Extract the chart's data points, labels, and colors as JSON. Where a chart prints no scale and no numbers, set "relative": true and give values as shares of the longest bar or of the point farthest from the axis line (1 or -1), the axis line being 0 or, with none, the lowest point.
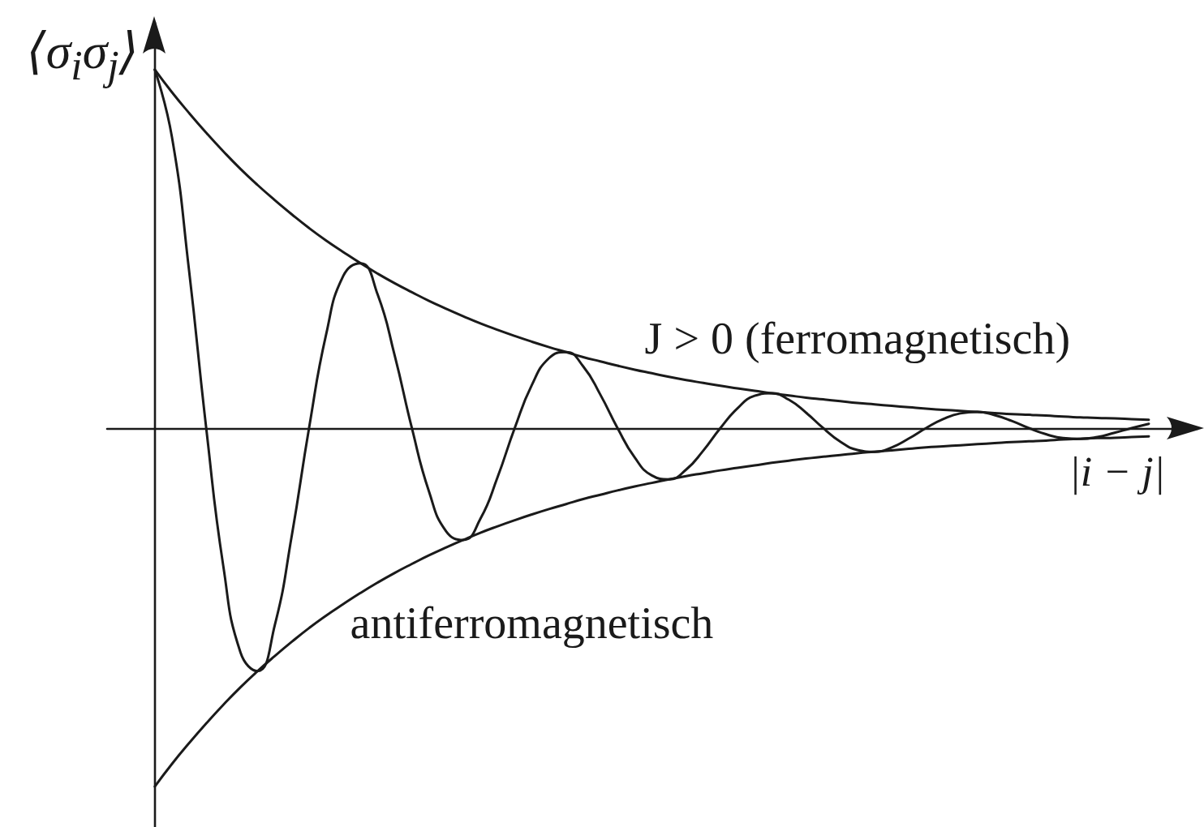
{
  "chart_data": {
    "type": "line",
    "relative": true,
    "tick_labels": false,
    "marker": "none",
    "line_style": "solid",
    "ylabel": "⟨σ$_{i}$σ$_{j}$⟩",
    "xlabel": "|i − j|",
    "categories": [
      null,
      null,
      null,
      null,
      null,
      null,
      null,
      null,
      null,
      null,
      null,
      null,
      null,
      null,
      null,
      null,
      null,
      null,
      null,
      null,
      null,
      null,
      null,
      null,
      null,
      null,
      null,
      null,
      null,
      null,
      null,
      null,
      null,
      null,
      null,
      null,
      null,
      null,
      null,
      null,
      null,
      null,
      null,
      null,
      null,
      null,
      null,
      null,
      null,
      null,
      null,
      null,
      null,
      null,
      null,
      null,
      null,
      null,
      null
    ],
    "series": [
      {
        "name": "J > 0 (ferromagnetisch)",
        "color": "#1a1a1a",
        "values": [
          1,
          0.937,
          0.879,
          0.824,
          0.772,
          0.723,
          0.678,
          0.636,
          0.596,
          0.558,
          0.523,
          0.491,
          0.46,
          0.431,
          0.404,
          0.379,
          0.355,
          0.333,
          0.312,
          0.292,
          0.274,
          0.257,
          0.241,
          0.226,
          0.212,
          0.198,
          0.186,
          0.174,
          0.163,
          0.153,
          0.143,
          0.134,
          0.126,
          0.118,
          0.111,
          0.104,
          0.097,
          0.091,
          0.085,
          0.08,
          0.075,
          0.07,
          0.066,
          0.062,
          0.058,
          0.054,
          0.051,
          0.048,
          0.045,
          0.042,
          0.039,
          0.037,
          0.035,
          0.032,
          0.03,
          0.028,
          0.027,
          0.025,
          0.023
        ]
      },
      {
        "name": "antiferromagnetisch",
        "color": "#1a1a1a",
        "values": [
          1,
          0.812,
          0.439,
          0,
          -0.386,
          -0.626,
          -0.678,
          -0.55,
          -0.298,
          0,
          0.262,
          0.425,
          0.46,
          0.373,
          0.202,
          0,
          -0.177,
          -0.288,
          -0.312,
          -0.253,
          -0.137,
          0,
          0.12,
          0.195,
          0.212,
          0.172,
          0.093,
          0,
          -0.082,
          -0.132,
          -0.143,
          -0.116,
          -0.063,
          0,
          0.055,
          0.09,
          0.097,
          0.079,
          0.043,
          0,
          -0.038,
          -0.061,
          -0.066,
          -0.054,
          -0.029,
          0,
          0.025,
          0.041,
          0.045,
          0.036,
          0.02,
          0,
          -0.017,
          -0.028,
          -0.03,
          -0.025,
          -0.013,
          0,
          0.012
        ]
      },
      {
        "color": "#1a1a1a",
        "values": [
          -1,
          -0.937,
          -0.879,
          -0.824,
          -0.772,
          -0.723,
          -0.678,
          -0.636,
          -0.596,
          -0.558,
          -0.523,
          -0.491,
          -0.46,
          -0.431,
          -0.404,
          -0.379,
          -0.355,
          -0.333,
          -0.312,
          -0.292,
          -0.274,
          -0.257,
          -0.241,
          -0.226,
          -0.212,
          -0.198,
          -0.186,
          -0.174,
          -0.163,
          -0.153,
          -0.143,
          -0.134,
          -0.126,
          -0.118,
          -0.111,
          -0.104,
          -0.097,
          -0.091,
          -0.085,
          -0.08,
          -0.075,
          -0.07,
          -0.066,
          -0.062,
          -0.058,
          -0.054,
          -0.051,
          -0.048,
          -0.045,
          -0.042,
          -0.039,
          -0.037,
          -0.035,
          -0.032,
          -0.03,
          -0.028,
          -0.027,
          -0.025,
          -0.023
        ]
      }
    ]
  }
}
